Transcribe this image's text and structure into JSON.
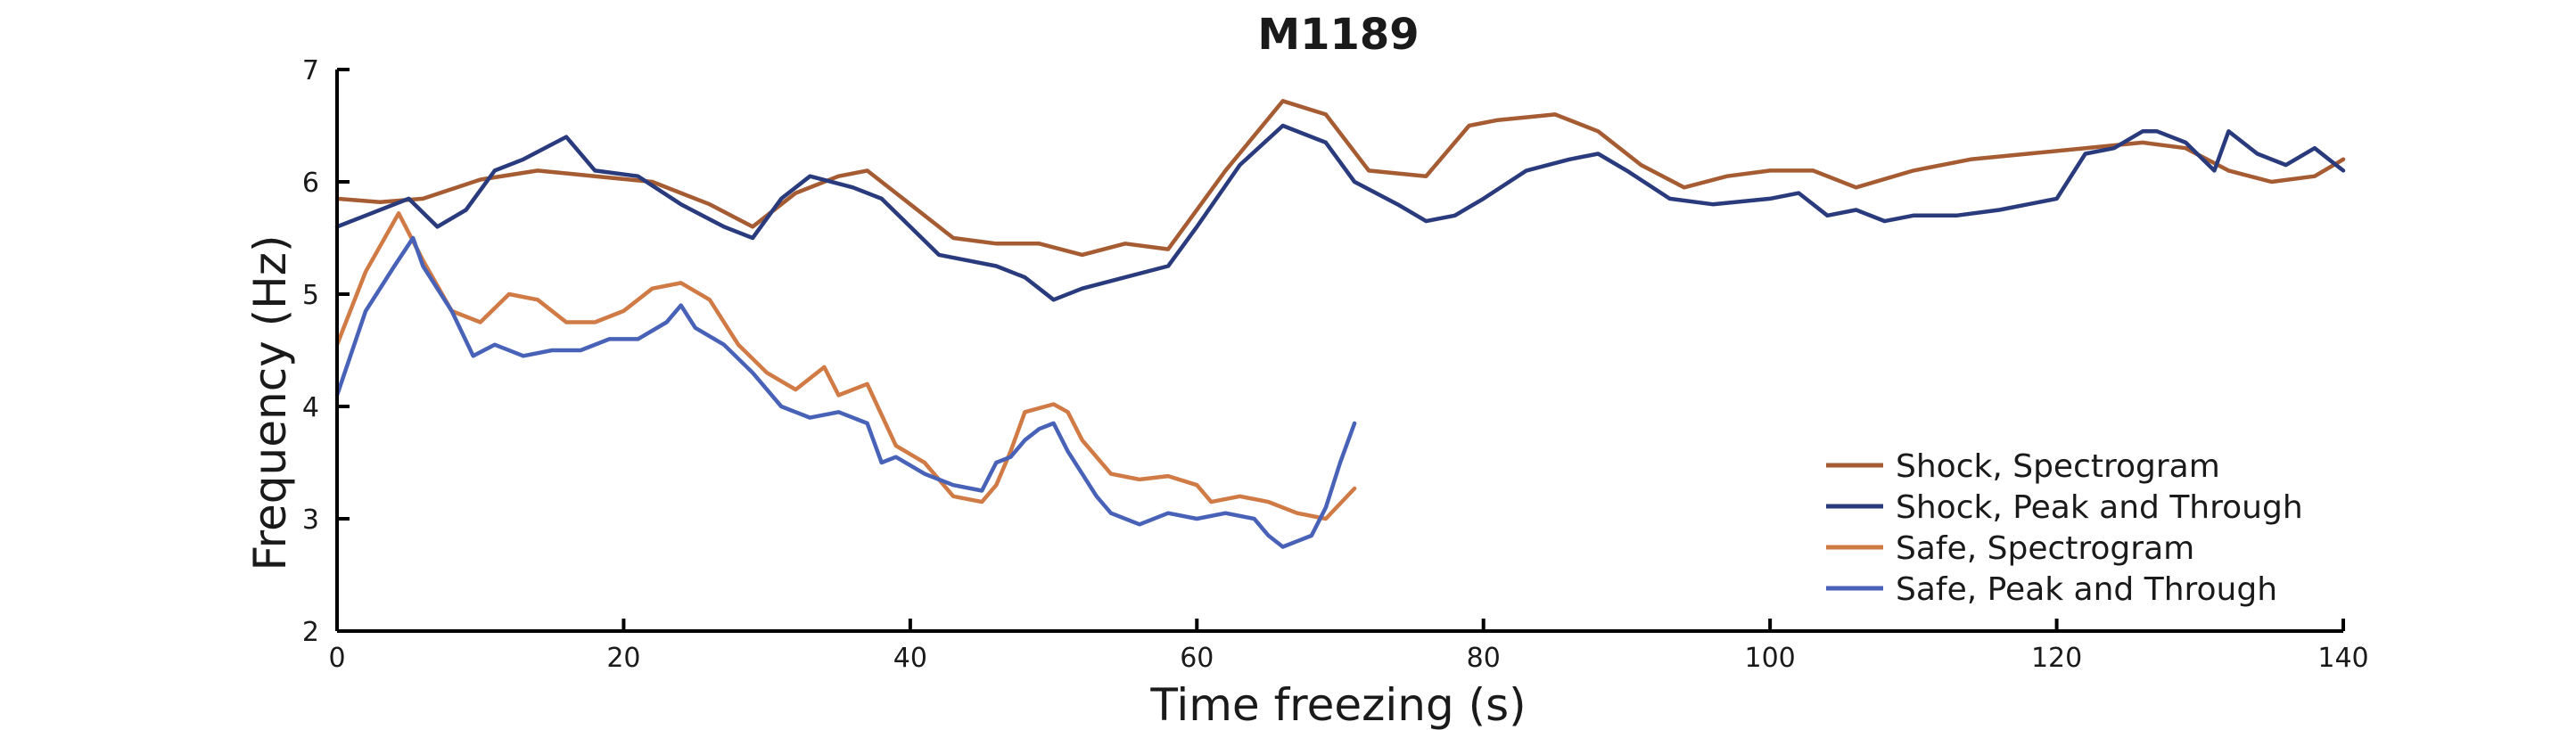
{
  "chart_data": {
    "type": "line",
    "title": "M1189",
    "xlabel": "Time freezing (s)",
    "ylabel": "Frequency (Hz)",
    "xlim": [
      0,
      140
    ],
    "ylim": [
      2,
      7
    ],
    "xticks": [
      0,
      20,
      40,
      60,
      80,
      100,
      120,
      140
    ],
    "yticks": [
      2,
      3,
      4,
      5,
      6,
      7
    ],
    "grid": false,
    "legend_position": "bottom-right",
    "series": [
      {
        "name": "Shock, Spectrogram",
        "color": "#a65c33",
        "x": [
          0,
          3,
          6,
          10,
          14,
          18,
          22,
          26,
          29,
          32,
          35,
          37,
          40,
          43,
          46,
          49,
          52,
          55,
          58,
          62,
          66,
          69,
          72,
          76,
          79,
          81,
          85,
          88,
          91,
          94,
          97,
          100,
          103,
          106,
          110,
          114,
          118,
          122,
          126,
          129,
          132,
          135,
          138,
          140
        ],
        "y": [
          5.85,
          5.82,
          5.85,
          6.02,
          6.1,
          6.05,
          6.0,
          5.8,
          5.6,
          5.9,
          6.05,
          6.1,
          5.8,
          5.5,
          5.45,
          5.45,
          5.35,
          5.45,
          5.4,
          6.1,
          6.72,
          6.6,
          6.1,
          6.05,
          6.5,
          6.55,
          6.6,
          6.45,
          6.15,
          5.95,
          6.05,
          6.1,
          6.1,
          5.95,
          6.1,
          6.2,
          6.25,
          6.3,
          6.35,
          6.3,
          6.1,
          6.0,
          6.05,
          6.2
        ]
      },
      {
        "name": "Shock, Peak and Through",
        "color": "#2a3b7d",
        "x": [
          0,
          2,
          5,
          7,
          9,
          11,
          13,
          16,
          18,
          21,
          24,
          27,
          29,
          31,
          33,
          36,
          38,
          40,
          42,
          44,
          46,
          48,
          49,
          50,
          52,
          55,
          58,
          60,
          63,
          66,
          69,
          71,
          74,
          76,
          78,
          80,
          83,
          86,
          88,
          90,
          93,
          96,
          100,
          102,
          104,
          106,
          108,
          110,
          113,
          116,
          120,
          122,
          124,
          126,
          127,
          129,
          131,
          132,
          134,
          136,
          138,
          139,
          140
        ],
        "y": [
          5.6,
          5.7,
          5.85,
          5.6,
          5.75,
          6.1,
          6.2,
          6.4,
          6.1,
          6.05,
          5.8,
          5.6,
          5.5,
          5.85,
          6.05,
          5.95,
          5.85,
          5.6,
          5.35,
          5.3,
          5.25,
          5.15,
          5.05,
          4.95,
          5.05,
          5.15,
          5.25,
          5.6,
          6.15,
          6.5,
          6.35,
          6.0,
          5.8,
          5.65,
          5.7,
          5.85,
          6.1,
          6.2,
          6.25,
          6.1,
          5.85,
          5.8,
          5.85,
          5.9,
          5.7,
          5.75,
          5.65,
          5.7,
          5.7,
          5.75,
          5.85,
          6.25,
          6.3,
          6.45,
          6.45,
          6.35,
          6.1,
          6.45,
          6.25,
          6.15,
          6.3,
          6.2,
          6.1
        ]
      },
      {
        "name": "Safe, Spectrogram",
        "color": "#d07a45",
        "x": [
          0,
          2,
          4.3,
          6,
          8,
          10,
          12,
          14,
          16,
          18,
          20,
          22,
          24,
          26,
          28,
          30,
          32,
          34,
          35,
          37,
          39,
          41,
          43,
          45,
          46,
          47,
          48,
          50,
          51,
          52,
          54,
          56,
          58,
          60,
          61,
          63,
          65,
          67,
          69,
          71
        ],
        "y": [
          4.55,
          5.2,
          5.72,
          5.3,
          4.85,
          4.75,
          5.0,
          4.95,
          4.75,
          4.75,
          4.85,
          5.05,
          5.1,
          4.95,
          4.55,
          4.3,
          4.15,
          4.35,
          4.1,
          4.2,
          3.65,
          3.5,
          3.2,
          3.15,
          3.3,
          3.6,
          3.95,
          4.02,
          3.95,
          3.7,
          3.4,
          3.35,
          3.38,
          3.3,
          3.15,
          3.2,
          3.15,
          3.05,
          3.0,
          3.27
        ]
      },
      {
        "name": "Safe, Peak and Through",
        "color": "#4862b8",
        "x": [
          0,
          2,
          4,
          5.3,
          6,
          8,
          9.5,
          11,
          13,
          15,
          17,
          19,
          21,
          23,
          24,
          25,
          27,
          29,
          31,
          33,
          35,
          37,
          38,
          39,
          41,
          43,
          45,
          46,
          47,
          48,
          49,
          50,
          51,
          52,
          53,
          54,
          56,
          58,
          60,
          62,
          64,
          65,
          66,
          67,
          68,
          69,
          70,
          71
        ],
        "y": [
          4.1,
          4.85,
          5.25,
          5.5,
          5.25,
          4.85,
          4.45,
          4.55,
          4.45,
          4.5,
          4.5,
          4.6,
          4.6,
          4.75,
          4.9,
          4.7,
          4.55,
          4.3,
          4.0,
          3.9,
          3.95,
          3.85,
          3.5,
          3.55,
          3.4,
          3.3,
          3.25,
          3.5,
          3.55,
          3.7,
          3.8,
          3.85,
          3.6,
          3.4,
          3.2,
          3.05,
          2.95,
          3.05,
          3.0,
          3.05,
          3.0,
          2.85,
          2.75,
          2.8,
          2.85,
          3.1,
          3.5,
          3.85
        ]
      }
    ]
  }
}
